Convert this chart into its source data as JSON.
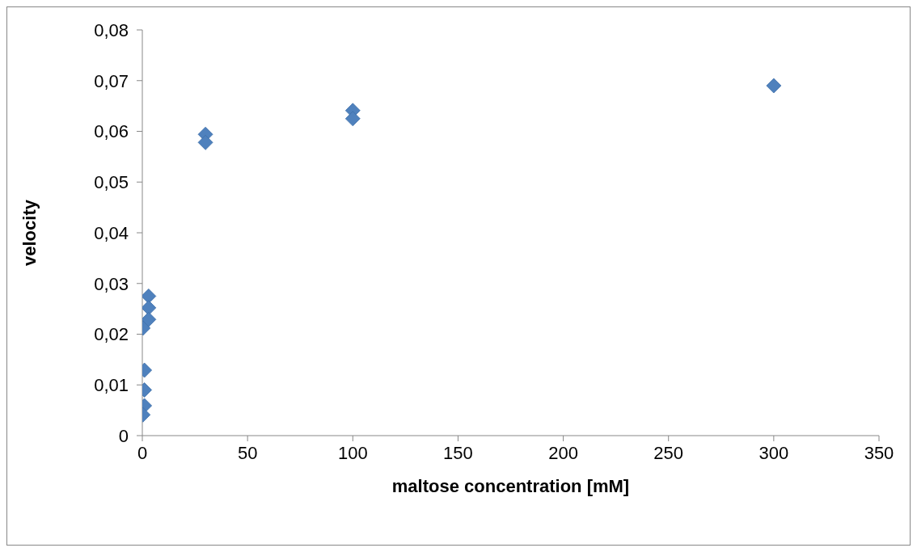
{
  "chart_data": {
    "type": "scatter",
    "xlabel": "maltose concentration [mM]",
    "ylabel": "velocity",
    "x": [
      300,
      100,
      100,
      30,
      30,
      3,
      3,
      3,
      0.3,
      1,
      1,
      1,
      0.3
    ],
    "values": [
      0.069,
      0.0641,
      0.0625,
      0.0594,
      0.0578,
      0.0275,
      0.0252,
      0.0229,
      0.0212,
      0.0129,
      0.009,
      0.0059,
      0.0041
    ],
    "color": "#4f81bd",
    "marker": "diamond",
    "grid": false,
    "legend": false,
    "xlim": [
      0,
      350
    ],
    "xticks": [
      0,
      50,
      100,
      150,
      200,
      250,
      300,
      350
    ],
    "ylim": [
      0,
      0.08
    ],
    "yticks": [
      0,
      {
        "value": 0.01,
        "label": "0,01"
      },
      {
        "value": 0.02,
        "label": "0,02"
      },
      {
        "value": 0.03,
        "label": "0,03"
      },
      {
        "value": 0.04,
        "label": "0,04"
      },
      {
        "value": 0.05,
        "label": "0,05"
      },
      {
        "value": 0.06,
        "label": "0,06"
      },
      {
        "value": 0.07,
        "label": "0,07"
      },
      {
        "value": 0.08,
        "label": "0,08"
      }
    ]
  }
}
